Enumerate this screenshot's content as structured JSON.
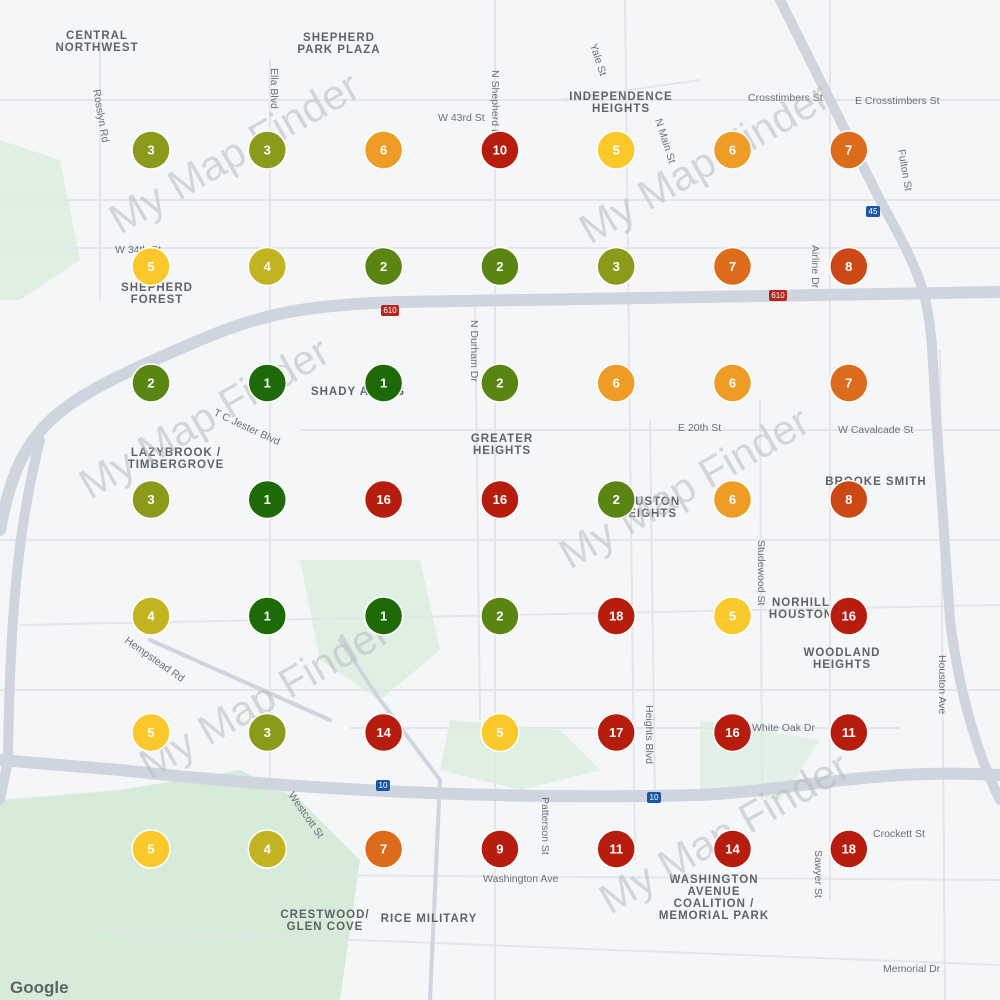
{
  "map": {
    "places": [
      [
        "CENTRAL",
        "NORTHWEST"
      ],
      [
        "SHEPHERD",
        "PARK PLAZA"
      ],
      [
        "INDEPENDENCE",
        "HEIGHTS"
      ],
      [
        "SHEPHERD",
        "FOREST"
      ],
      [
        "SHADY ACRES"
      ],
      [
        "LAZYBROOK /",
        "TIMBERGROVE"
      ],
      [
        "GREATER",
        "HEIGHTS"
      ],
      [
        "BROOKE SMITH"
      ],
      [
        "HOUSTON",
        "HEIGHTS"
      ],
      [
        "NORHILL",
        "HOUSTON"
      ],
      [
        "WOODLAND",
        "HEIGHTS"
      ],
      [
        "WASHINGTON",
        "AVENUE",
        "COALITION /",
        "MEMORIAL PARK"
      ],
      [
        "CRESTWOOD/",
        "GLEN COVE"
      ],
      [
        "RICE MILITARY"
      ]
    ],
    "streets": [
      "W 43rd St",
      "Crosstimbers St",
      "E Crosstimbers St",
      "W 34th St",
      "E 20th St",
      "W Cavalcade St",
      "White Oak Dr",
      "Crockett St",
      "Washington Ave",
      "Memorial Dr",
      "N Shepherd Dr",
      "N Main St",
      "Yale St",
      "Ella Blvd",
      "Rosslyn Rd",
      "T C Jester Blvd",
      "Airline Dr",
      "Fulton St",
      "Studewood St",
      "Heights Blvd",
      "Houston Ave",
      "Hempstead Rd",
      "N Durham Dr",
      "Westcott St",
      "Patterson St",
      "Sawyer St"
    ],
    "shields": [
      "610",
      "610",
      "45",
      "10",
      "10"
    ],
    "watermark": "My Map Finder",
    "attribution": "Google",
    "markers": [
      [
        3,
        3,
        6,
        10,
        5,
        6,
        7
      ],
      [
        5,
        4,
        2,
        2,
        3,
        7,
        8
      ],
      [
        2,
        1,
        1,
        2,
        6,
        6,
        7
      ],
      [
        3,
        1,
        16,
        16,
        2,
        6,
        8
      ],
      [
        4,
        1,
        1,
        2,
        18,
        5,
        16
      ],
      [
        5,
        3,
        14,
        5,
        17,
        16,
        11
      ],
      [
        5,
        4,
        7,
        9,
        11,
        14,
        18
      ]
    ]
  }
}
